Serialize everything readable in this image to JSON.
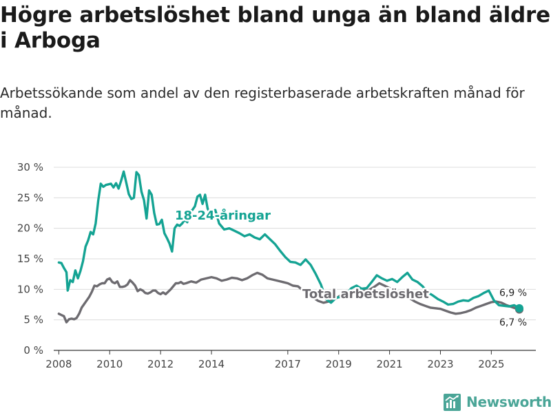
{
  "title": "Högre arbetslöshet bland unga än bland äldre i Arboga",
  "subtitle": "Arbetssökande som andel av den registerbaserade arbetskraften månad för månad.",
  "brand": {
    "name": "Newsworthy"
  },
  "colors": {
    "young": "#14a393",
    "total": "#6d6b70",
    "grid": "#dcdcdc",
    "axis": "#333333",
    "label_text": "#222222",
    "brand": "#4aa597"
  },
  "chart_data": {
    "type": "line",
    "ylim": [
      0,
      30
    ],
    "y_ticks": [
      0,
      5,
      10,
      15,
      20,
      25,
      30
    ],
    "y_tick_labels": [
      "0 %",
      "5 %",
      "10 %",
      "15 %",
      "20 %",
      "25 %",
      "30 %"
    ],
    "xlim": [
      2007.8,
      2026.75
    ],
    "x_ticks": [
      2008,
      2010,
      2012,
      2014,
      2017,
      2019,
      2021,
      2023,
      2025
    ],
    "x_tick_labels": [
      "2008",
      "2010",
      "2012",
      "2014",
      "2017",
      "2019",
      "2021",
      "2023",
      "2025"
    ],
    "series": [
      {
        "name": "Total arbetslöshet",
        "label": "Total arbetslöshet",
        "color": "total",
        "end_label": "6,7 %",
        "x": [
          2008.0,
          2008.1,
          2008.2,
          2008.3,
          2008.4,
          2008.5,
          2008.6,
          2008.7,
          2008.8,
          2008.9,
          2009.0,
          2009.1,
          2009.2,
          2009.3,
          2009.4,
          2009.5,
          2009.6,
          2009.7,
          2009.8,
          2009.9,
          2010.0,
          2010.1,
          2010.2,
          2010.3,
          2010.4,
          2010.5,
          2010.6,
          2010.7,
          2010.8,
          2010.9,
          2011.0,
          2011.1,
          2011.2,
          2011.3,
          2011.4,
          2011.5,
          2011.6,
          2011.7,
          2011.8,
          2011.9,
          2012.0,
          2012.1,
          2012.2,
          2012.3,
          2012.4,
          2012.5,
          2012.6,
          2012.7,
          2012.8,
          2012.9,
          2013.0,
          2013.2,
          2013.4,
          2013.6,
          2013.8,
          2014.0,
          2014.2,
          2014.4,
          2014.6,
          2014.8,
          2015.0,
          2015.2,
          2015.4,
          2015.6,
          2015.8,
          2016.0,
          2016.2,
          2016.4,
          2016.6,
          2016.8,
          2017.0,
          2017.2,
          2017.4,
          2017.6,
          2017.8,
          2018.0,
          2018.2,
          2018.4,
          2018.6,
          2018.8,
          2019.0,
          2019.2,
          2019.4,
          2019.6,
          2019.8,
          2020.0,
          2020.2,
          2020.4,
          2020.6,
          2020.8,
          2021.0,
          2021.2,
          2021.4,
          2021.6,
          2021.8,
          2022.0,
          2022.2,
          2022.4,
          2022.6,
          2022.8,
          2023.0,
          2023.2,
          2023.4,
          2023.6,
          2023.8,
          2024.0,
          2024.2,
          2024.4,
          2024.6,
          2024.8,
          2025.0,
          2025.2,
          2025.4,
          2025.6,
          2025.8,
          2026.0,
          2026.1
        ],
        "y": [
          6.0,
          5.8,
          5.6,
          4.6,
          5.1,
          5.2,
          5.1,
          5.3,
          6.0,
          7.0,
          7.6,
          8.2,
          8.8,
          9.6,
          10.6,
          10.5,
          10.8,
          11.0,
          11.0,
          11.6,
          11.8,
          11.2,
          11.0,
          11.3,
          10.4,
          10.4,
          10.5,
          10.8,
          11.5,
          11.1,
          10.6,
          9.7,
          10.0,
          9.8,
          9.4,
          9.3,
          9.5,
          9.8,
          9.8,
          9.4,
          9.2,
          9.5,
          9.2,
          9.6,
          10.0,
          10.5,
          11.0,
          11.0,
          11.2,
          10.9,
          11.0,
          11.3,
          11.1,
          11.6,
          11.8,
          12.0,
          11.8,
          11.4,
          11.6,
          11.9,
          11.8,
          11.5,
          11.8,
          12.3,
          12.7,
          12.4,
          11.8,
          11.6,
          11.4,
          11.2,
          11.0,
          10.6,
          10.5,
          9.8,
          9.2,
          8.6,
          8.1,
          7.8,
          8.0,
          8.3,
          8.8,
          9.4,
          9.5,
          9.4,
          9.6,
          9.8,
          9.9,
          10.4,
          11.0,
          10.6,
          10.2,
          9.8,
          9.5,
          9.0,
          8.5,
          8.0,
          7.6,
          7.3,
          7.0,
          6.9,
          6.8,
          6.5,
          6.2,
          6.0,
          6.1,
          6.3,
          6.6,
          7.0,
          7.3,
          7.6,
          7.9,
          8.0,
          7.8,
          7.4,
          7.1,
          6.8,
          6.7
        ]
      },
      {
        "name": "18-24-åringar",
        "label": "18-24-åringar",
        "color": "young",
        "end_label": "6,9 %",
        "x": [
          2008.0,
          2008.1,
          2008.2,
          2008.3,
          2008.35,
          2008.45,
          2008.55,
          2008.65,
          2008.75,
          2008.85,
          2008.95,
          2009.05,
          2009.15,
          2009.25,
          2009.35,
          2009.45,
          2009.55,
          2009.65,
          2009.75,
          2009.85,
          2009.95,
          2010.05,
          2010.15,
          2010.25,
          2010.35,
          2010.45,
          2010.55,
          2010.65,
          2010.75,
          2010.85,
          2010.95,
          2011.05,
          2011.15,
          2011.25,
          2011.35,
          2011.45,
          2011.55,
          2011.65,
          2011.75,
          2011.85,
          2011.95,
          2012.05,
          2012.15,
          2012.25,
          2012.35,
          2012.45,
          2012.55,
          2012.65,
          2012.75,
          2012.85,
          2012.95,
          2013.05,
          2013.15,
          2013.25,
          2013.35,
          2013.45,
          2013.55,
          2013.65,
          2013.75,
          2013.85,
          2013.95,
          2014.05,
          2014.15,
          2014.3,
          2014.5,
          2014.7,
          2014.9,
          2015.1,
          2015.3,
          2015.5,
          2015.7,
          2015.9,
          2016.1,
          2016.3,
          2016.5,
          2016.7,
          2016.9,
          2017.1,
          2017.3,
          2017.5,
          2017.7,
          2017.9,
          2018.1,
          2018.3,
          2018.5,
          2018.7,
          2018.9,
          2019.1,
          2019.3,
          2019.5,
          2019.7,
          2019.9,
          2020.1,
          2020.3,
          2020.5,
          2020.7,
          2020.9,
          2021.1,
          2021.3,
          2021.5,
          2021.7,
          2021.9,
          2022.1,
          2022.3,
          2022.5,
          2022.7,
          2022.9,
          2023.1,
          2023.3,
          2023.5,
          2023.7,
          2023.9,
          2024.1,
          2024.3,
          2024.5,
          2024.7,
          2024.9,
          2025.1,
          2025.3,
          2025.5,
          2025.7,
          2025.9,
          2026.1
        ],
        "y": [
          14.4,
          14.3,
          13.5,
          12.8,
          9.8,
          11.5,
          11.2,
          13.1,
          11.8,
          13.0,
          14.6,
          17.0,
          18.0,
          19.4,
          19.0,
          20.8,
          24.5,
          27.3,
          26.8,
          27.1,
          27.2,
          27.3,
          26.7,
          27.4,
          26.5,
          27.8,
          29.3,
          27.5,
          25.6,
          24.8,
          25.0,
          29.2,
          28.7,
          26.0,
          24.6,
          21.6,
          26.2,
          25.5,
          22.5,
          20.6,
          20.7,
          21.4,
          19.2,
          18.4,
          17.5,
          16.2,
          20.0,
          20.6,
          20.4,
          20.8,
          21.4,
          21.0,
          22.8,
          23.0,
          23.6,
          25.2,
          25.5,
          24.0,
          25.5,
          23.2,
          22.5,
          22.8,
          23.0,
          20.8,
          19.8,
          20.0,
          19.6,
          19.2,
          18.7,
          19.0,
          18.5,
          18.2,
          19.0,
          18.2,
          17.4,
          16.3,
          15.3,
          14.5,
          14.4,
          14.0,
          14.9,
          14.0,
          12.5,
          10.8,
          8.4,
          7.8,
          8.6,
          8.8,
          9.2,
          10.2,
          10.6,
          10.1,
          10.2,
          11.2,
          12.3,
          11.8,
          11.4,
          11.7,
          11.2,
          12.0,
          12.7,
          11.6,
          11.2,
          10.5,
          9.5,
          9.0,
          8.4,
          8.0,
          7.5,
          7.6,
          8.0,
          8.2,
          8.1,
          8.6,
          8.9,
          9.4,
          9.8,
          8.2,
          7.4,
          7.3,
          7.2,
          7.4,
          6.9
        ]
      }
    ],
    "series_labels_inline": true
  }
}
